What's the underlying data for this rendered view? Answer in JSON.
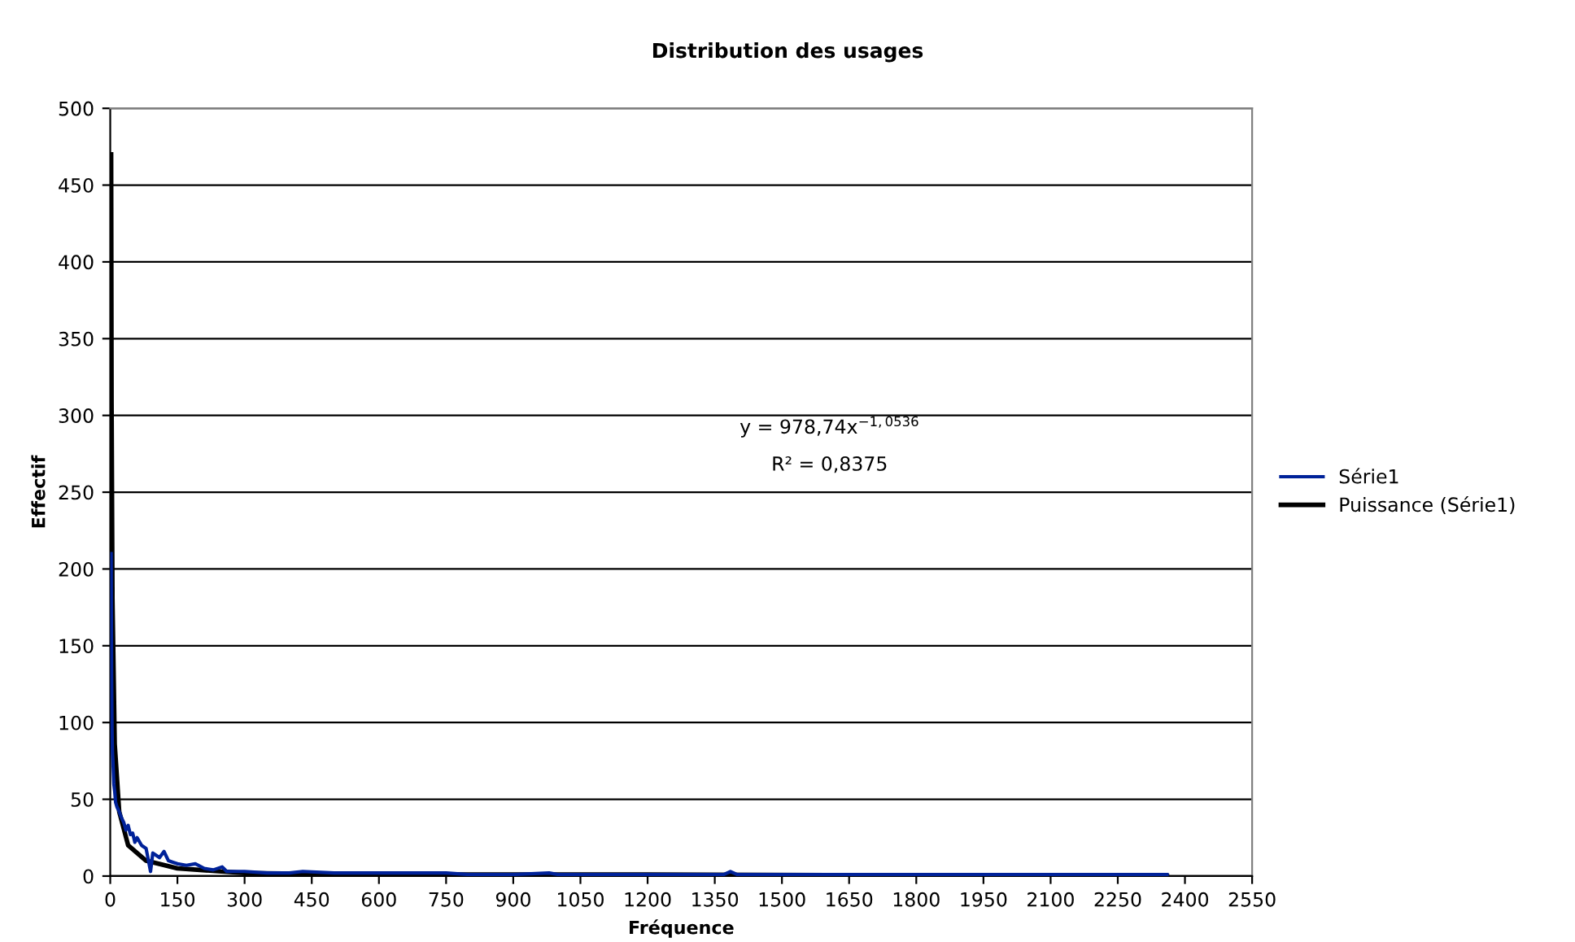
{
  "chart_data": {
    "type": "line",
    "title": "Distribution des usages",
    "xlabel": "Fréquence",
    "ylabel": "Effectif",
    "xlim": [
      0,
      2550
    ],
    "xticks": [
      0,
      150,
      300,
      450,
      600,
      750,
      900,
      1050,
      1200,
      1350,
      1500,
      1650,
      1800,
      1950,
      2100,
      2250,
      2400,
      2550
    ],
    "ylim": [
      0,
      500
    ],
    "yticks": [
      0,
      50,
      100,
      150,
      200,
      250,
      300,
      350,
      400,
      450,
      500
    ],
    "grid": "y",
    "legend": "right",
    "annotations": [
      "y = 978,74x$^{−1,0536}$",
      "R² = 0,8375"
    ],
    "series": [
      {
        "name": "Série1",
        "color": "#002299",
        "x": [
          2,
          3,
          4,
          5,
          6,
          8,
          10,
          12,
          15,
          20,
          25,
          30,
          35,
          40,
          45,
          50,
          55,
          60,
          70,
          80,
          90,
          95,
          100,
          110,
          120,
          130,
          140,
          150,
          170,
          190,
          210,
          230,
          250,
          260,
          300,
          350,
          400,
          430,
          500,
          600,
          700,
          750,
          800,
          900,
          980,
          1000,
          1200,
          1370,
          1385,
          1400,
          1600,
          1800,
          2000,
          2200,
          2360
        ],
        "values": [
          210,
          130,
          95,
          80,
          75,
          60,
          55,
          48,
          45,
          42,
          38,
          35,
          30,
          33,
          27,
          28,
          22,
          25,
          20,
          18,
          3,
          15,
          14,
          12,
          16,
          10,
          9,
          8,
          7,
          8,
          5,
          4,
          6,
          3,
          3,
          2,
          2,
          3,
          2,
          2,
          2,
          2,
          1,
          1,
          2,
          1,
          1,
          1,
          3,
          1,
          1,
          1,
          1,
          1,
          1
        ]
      },
      {
        "name": "Puissance (Série1)",
        "type": "line",
        "color": "#000000",
        "x": [
          2,
          3,
          5,
          10,
          20,
          40,
          80,
          150,
          300,
          600,
          1200,
          2360
        ],
        "values": [
          470,
          307,
          180,
          86,
          42,
          20,
          10,
          5,
          2,
          1,
          1,
          0
        ]
      }
    ]
  }
}
